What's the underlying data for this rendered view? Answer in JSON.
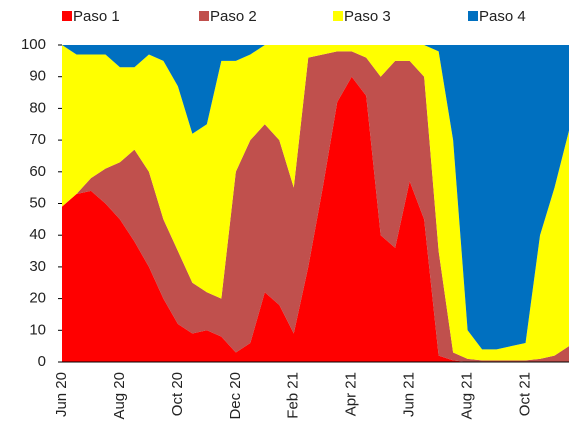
{
  "chart_data": {
    "type": "stacked_area",
    "categories": [
      "Jun 20",
      null,
      null,
      null,
      "Aug 20",
      null,
      null,
      null,
      "Oct 20",
      null,
      null,
      null,
      "Dec 20",
      null,
      null,
      null,
      "Feb 21",
      null,
      null,
      null,
      "Apr 21",
      null,
      null,
      null,
      "Jun 21",
      null,
      null,
      null,
      "Aug 21",
      null,
      null,
      null,
      "Oct 21",
      null,
      null,
      null
    ],
    "series": [
      {
        "name": "Paso 1",
        "color": "#ff0000",
        "values": [
          49,
          53,
          54,
          50,
          45,
          38,
          30,
          20,
          12,
          9,
          10,
          8,
          3,
          6,
          22,
          18,
          9,
          30,
          55,
          82,
          90,
          84,
          40,
          36,
          57,
          45,
          2,
          0.5,
          0,
          0,
          0,
          0,
          0,
          0,
          0,
          0
        ]
      },
      {
        "name": "Paso 2",
        "color": "#c0504d",
        "values": [
          0,
          0,
          4,
          11,
          18,
          29,
          30,
          25,
          23,
          16,
          12,
          12,
          57,
          64,
          53,
          52,
          46,
          66,
          42,
          16,
          8,
          12,
          50,
          59,
          38,
          45,
          33,
          2.5,
          1,
          0.5,
          0.5,
          0.5,
          0.5,
          1,
          2,
          5
        ]
      },
      {
        "name": "Paso 3",
        "color": "#ffff00",
        "values": [
          51,
          44,
          39,
          36,
          30,
          26,
          37,
          50,
          52,
          47,
          53,
          75,
          35,
          27,
          25,
          30,
          45,
          4,
          3,
          2,
          2,
          4,
          10,
          5,
          5,
          10,
          63,
          67,
          9,
          3.5,
          3.5,
          4.5,
          5.5,
          39,
          53,
          68
        ]
      },
      {
        "name": "Paso 4",
        "color": "#0070c0",
        "values": [
          0,
          3,
          3,
          3,
          7,
          7,
          3,
          5,
          13,
          28,
          25,
          5,
          5,
          3,
          0,
          0,
          0,
          0,
          0,
          0,
          0,
          0,
          0,
          0,
          0,
          0,
          2,
          30,
          90,
          96,
          96,
          95,
          94,
          60,
          45,
          27
        ]
      }
    ],
    "ylim": [
      0,
      100
    ],
    "yticks": [
      0,
      10,
      20,
      30,
      40,
      50,
      60,
      70,
      80,
      90,
      100
    ],
    "legend": "top"
  }
}
